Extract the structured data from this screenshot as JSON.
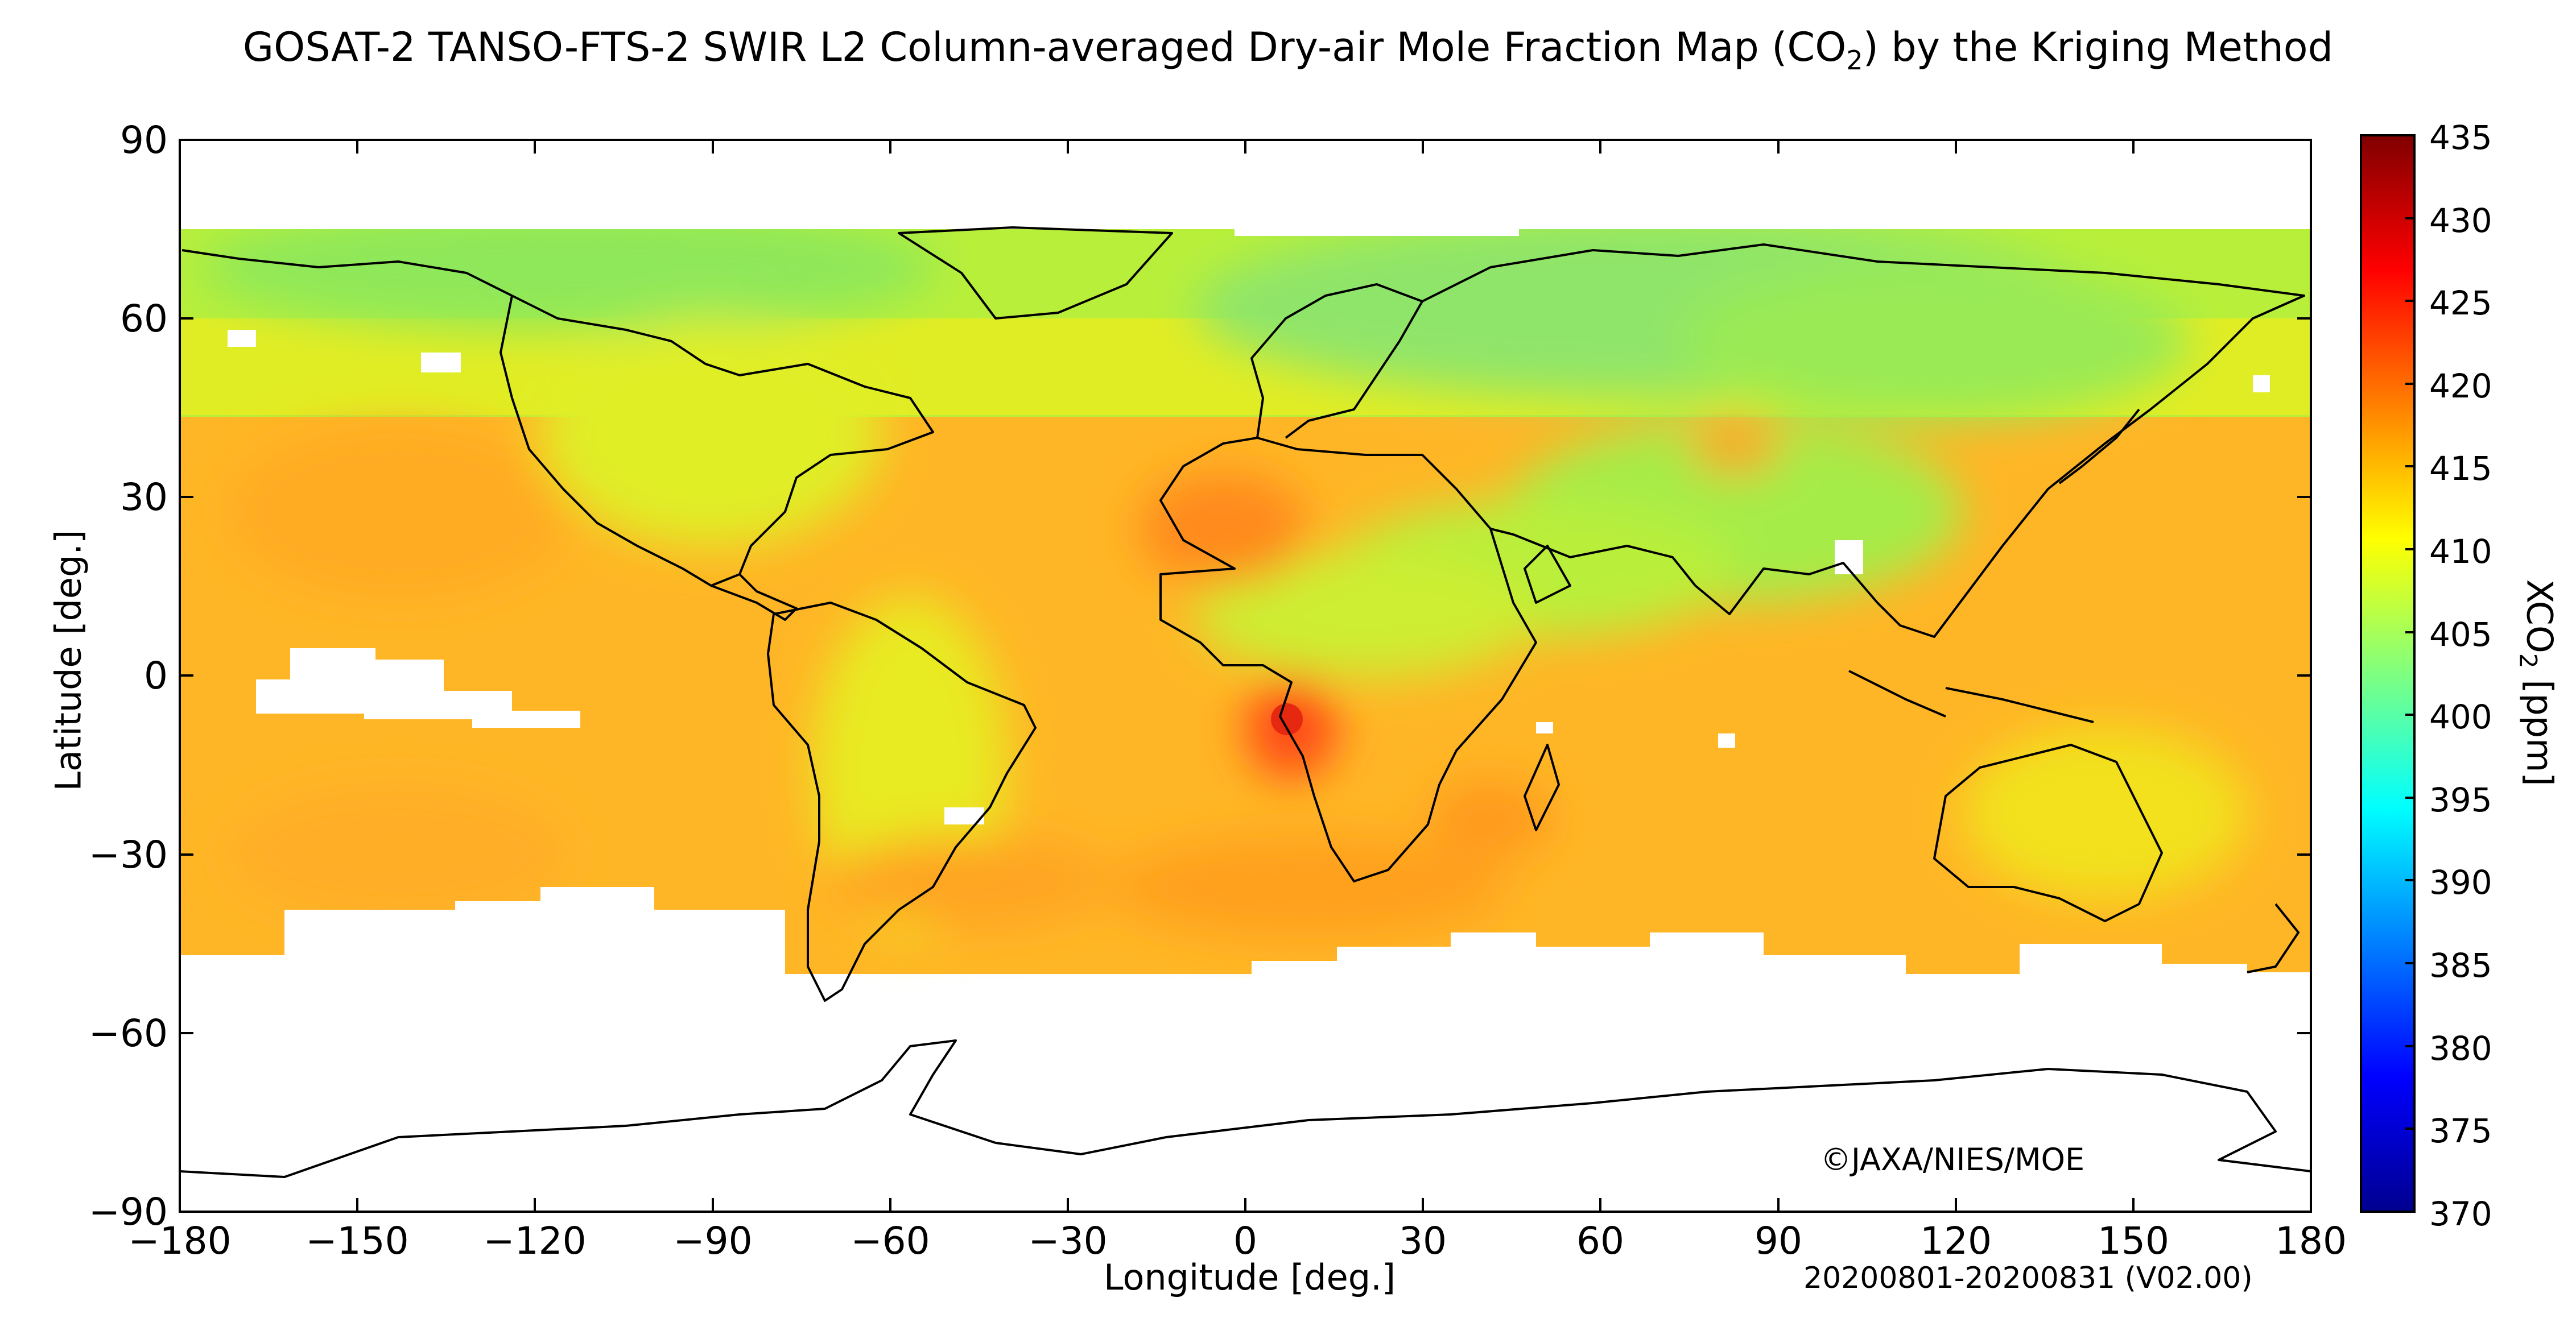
{
  "title": {
    "main": "GOSAT-2 TANSO-FTS-2 SWIR L2 Column-averaged Dry-air Mole Fraction Map (CO",
    "sub": "2",
    "tail": ") by the Kriging Method"
  },
  "axes": {
    "xlabel": "Longitude [deg.]",
    "ylabel": "Latitude [deg.]",
    "xticks": [
      "−180",
      "−150",
      "−120",
      "−90",
      "−60",
      "−30",
      "0",
      "30",
      "60",
      "90",
      "120",
      "150",
      "180"
    ],
    "yticks": [
      "90",
      "60",
      "30",
      "0",
      "−30",
      "−60",
      "−90"
    ]
  },
  "colorbar": {
    "label_main": "XCO",
    "label_sub": "2",
    "label_tail": " [ppm]",
    "ticks": [
      "435",
      "430",
      "425",
      "420",
      "415",
      "410",
      "405",
      "400",
      "395",
      "390",
      "385",
      "380",
      "375",
      "370"
    ],
    "range": [
      370,
      435
    ],
    "colormap": "jet"
  },
  "credit": "©JAXA/NIES/MOE",
  "period": "20200801-20200831 (V02.00)",
  "colors": {
    "land_outline": "#000000",
    "no_data": "#ffffff",
    "background_xco2_orange": "#ffb020",
    "high_latitude_green": "#9aee44"
  }
}
